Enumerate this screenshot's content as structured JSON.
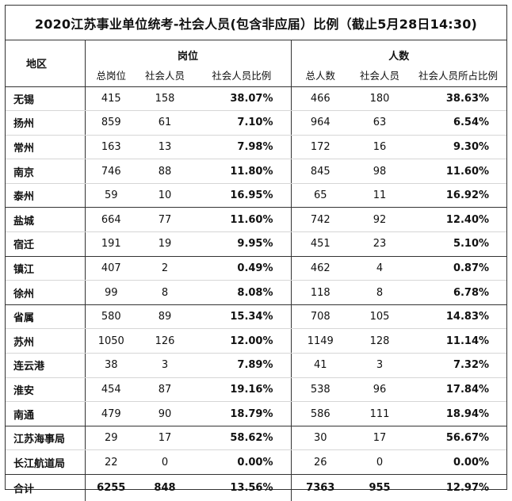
{
  "title": "2020江苏事业单位统考-社会人员(包含非应届）比例（截止5月28日14:30)",
  "headers": {
    "region": "地区",
    "posts_group": "岗位",
    "people_group": "人数",
    "cols": [
      "总岗位",
      "社会人员",
      "社会人员比例",
      "总人数",
      "社会人员",
      "社会人员所占比例"
    ]
  },
  "rows": [
    {
      "region": "无锡",
      "total_posts": "415",
      "social_posts": "158",
      "post_ratio": "38.07%",
      "total_people": "466",
      "social_people": "180",
      "people_ratio": "38.63%"
    },
    {
      "region": "扬州",
      "total_posts": "859",
      "social_posts": "61",
      "post_ratio": "7.10%",
      "total_people": "964",
      "social_people": "63",
      "people_ratio": "6.54%"
    },
    {
      "region": "常州",
      "total_posts": "163",
      "social_posts": "13",
      "post_ratio": "7.98%",
      "total_people": "172",
      "social_people": "16",
      "people_ratio": "9.30%"
    },
    {
      "region": "南京",
      "total_posts": "746",
      "social_posts": "88",
      "post_ratio": "11.80%",
      "total_people": "845",
      "social_people": "98",
      "people_ratio": "11.60%"
    },
    {
      "region": "泰州",
      "total_posts": "59",
      "social_posts": "10",
      "post_ratio": "16.95%",
      "total_people": "65",
      "social_people": "11",
      "people_ratio": "16.92%"
    },
    {
      "region": "盐城",
      "total_posts": "664",
      "social_posts": "77",
      "post_ratio": "11.60%",
      "total_people": "742",
      "social_people": "92",
      "people_ratio": "12.40%"
    },
    {
      "region": "宿迁",
      "total_posts": "191",
      "social_posts": "19",
      "post_ratio": "9.95%",
      "total_people": "451",
      "social_people": "23",
      "people_ratio": "5.10%"
    },
    {
      "region": "镇江",
      "total_posts": "407",
      "social_posts": "2",
      "post_ratio": "0.49%",
      "total_people": "462",
      "social_people": "4",
      "people_ratio": "0.87%"
    },
    {
      "region": "徐州",
      "total_posts": "99",
      "social_posts": "8",
      "post_ratio": "8.08%",
      "total_people": "118",
      "social_people": "8",
      "people_ratio": "6.78%"
    },
    {
      "region": "省属",
      "total_posts": "580",
      "social_posts": "89",
      "post_ratio": "15.34%",
      "total_people": "708",
      "social_people": "105",
      "people_ratio": "14.83%"
    },
    {
      "region": "苏州",
      "total_posts": "1050",
      "social_posts": "126",
      "post_ratio": "12.00%",
      "total_people": "1149",
      "social_people": "128",
      "people_ratio": "11.14%"
    },
    {
      "region": "连云港",
      "total_posts": "38",
      "social_posts": "3",
      "post_ratio": "7.89%",
      "total_people": "41",
      "social_people": "3",
      "people_ratio": "7.32%"
    },
    {
      "region": "淮安",
      "total_posts": "454",
      "social_posts": "87",
      "post_ratio": "19.16%",
      "total_people": "538",
      "social_people": "96",
      "people_ratio": "17.84%"
    },
    {
      "region": "南通",
      "total_posts": "479",
      "social_posts": "90",
      "post_ratio": "18.79%",
      "total_people": "586",
      "social_people": "111",
      "people_ratio": "18.94%"
    },
    {
      "region": "江苏海事局",
      "total_posts": "29",
      "social_posts": "17",
      "post_ratio": "58.62%",
      "total_people": "30",
      "social_people": "17",
      "people_ratio": "56.67%"
    },
    {
      "region": "长江航道局",
      "total_posts": "22",
      "social_posts": "0",
      "post_ratio": "0.00%",
      "total_people": "26",
      "social_people": "0",
      "people_ratio": "0.00%"
    }
  ],
  "total": {
    "region": "合计",
    "total_posts": "6255",
    "social_posts": "848",
    "post_ratio": "13.56%",
    "total_people": "7363",
    "social_people": "955",
    "people_ratio": "12.97%"
  }
}
